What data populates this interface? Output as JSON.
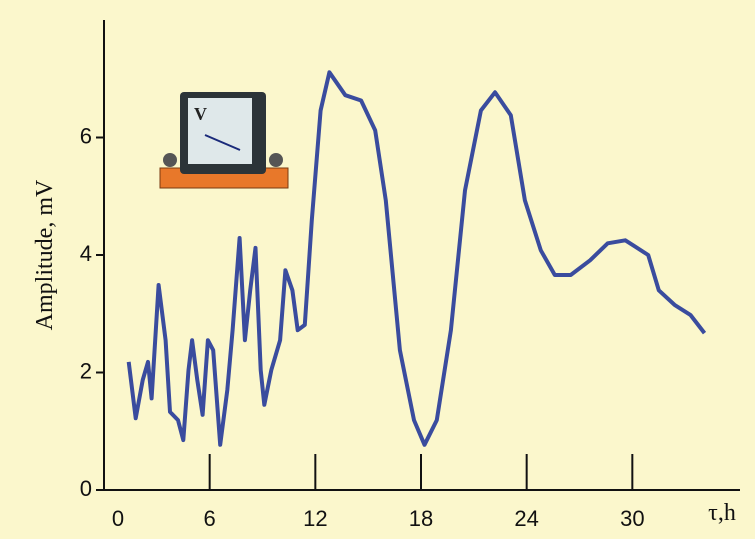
{
  "chart_data": {
    "type": "line",
    "y_label": "Amplitude, mV",
    "x_label": "τ,h",
    "annotations": [
      "V"
    ],
    "color": "#3a4c9e",
    "xlim": [
      0,
      36
    ],
    "xticks": [
      0,
      6,
      12,
      18,
      24,
      30
    ],
    "ylim": [
      0,
      8
    ],
    "yticks": [
      0,
      2,
      4,
      6
    ],
    "x": [
      1.4,
      1.8,
      2.2,
      2.5,
      2.7,
      3.1,
      3.5,
      3.75,
      4.2,
      4.5,
      4.8,
      5.0,
      5.3,
      5.6,
      5.9,
      6.2,
      6.6,
      7.0,
      7.3,
      7.7,
      8.0,
      8.3,
      8.6,
      8.9,
      9.1,
      9.5,
      10.0,
      10.3,
      10.7,
      11.0,
      11.4,
      11.8,
      12.3,
      12.8,
      13.7,
      14.6,
      15.4,
      16.0,
      16.8,
      17.6,
      18.2,
      18.9,
      19.7,
      20.5,
      21.4,
      22.2,
      23.1,
      23.9,
      24.8,
      25.6,
      26.5,
      27.6,
      28.6,
      29.6,
      30.9,
      31.5,
      32.4,
      33.3,
      34.1
    ],
    "values": [
      2.18,
      1.22,
      1.87,
      2.18,
      1.56,
      3.49,
      2.55,
      1.33,
      1.19,
      0.85,
      2.04,
      2.55,
      1.87,
      1.28,
      2.55,
      2.38,
      0.77,
      1.7,
      2.72,
      4.29,
      2.55,
      3.4,
      4.12,
      2.04,
      1.45,
      2.04,
      2.55,
      3.74,
      3.4,
      2.72,
      2.81,
      4.59,
      6.46,
      7.11,
      6.72,
      6.63,
      6.12,
      4.93,
      2.38,
      1.19,
      0.77,
      1.19,
      2.72,
      5.1,
      6.46,
      6.77,
      6.38,
      4.93,
      4.08,
      3.66,
      3.66,
      3.91,
      4.2,
      4.25,
      4.0,
      3.4,
      3.15,
      2.98,
      2.67
    ]
  }
}
